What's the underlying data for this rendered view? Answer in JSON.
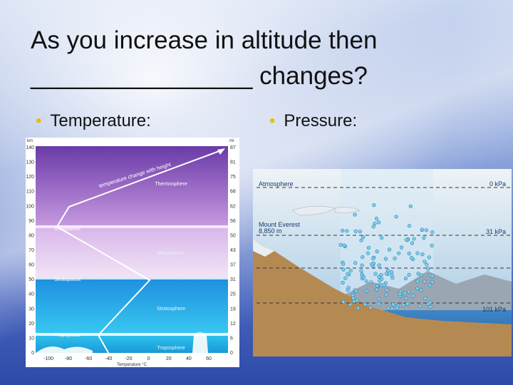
{
  "title": "As you increase in altitude then ________________ changes?",
  "bullets": [
    "Temperature:",
    "Pressure:"
  ],
  "temperature_diagram": {
    "km_unit": "km",
    "mi_unit": "mi",
    "km_ticks": [
      140,
      130,
      120,
      110,
      100,
      90,
      80,
      70,
      60,
      50,
      40,
      30,
      20,
      10,
      0
    ],
    "mi_ticks": [
      87,
      81,
      75,
      68,
      62,
      56,
      50,
      43,
      37,
      31,
      25,
      19,
      12,
      6,
      0
    ],
    "temp_ticks": [
      -100,
      -80,
      -60,
      -40,
      -20,
      0,
      20,
      40,
      60
    ],
    "temp_axis_label": "Temperature °C",
    "trend_label": "temperature change with height",
    "layers": [
      "Thermosphere",
      "Mesopause",
      "Mesosphere",
      "Stratopause",
      "Stratosphere",
      "Tropopause",
      "Troposphere"
    ]
  },
  "pressure_diagram": {
    "atmosphere": "Atmosphere",
    "top_pressure": "0 kPa",
    "everest": "Mount Everest",
    "everest_height": "8,850 m",
    "everest_pressure": "31 kPa",
    "sea_pressure": "101 kPa"
  }
}
